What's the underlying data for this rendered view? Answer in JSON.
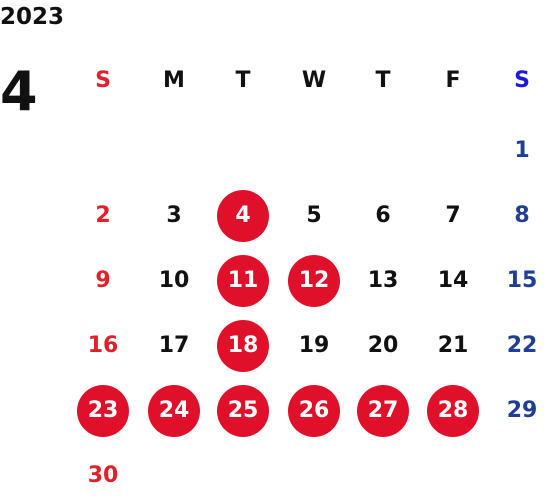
{
  "year": "2023",
  "month": "4",
  "colors": {
    "sunday": "#e0202a",
    "saturday": "#1e3f94",
    "saturday_header": "#1a1ad6",
    "highlight": "#e0102a",
    "text": "#111111"
  },
  "weekday_headers": [
    "S",
    "M",
    "T",
    "W",
    "T",
    "F",
    "S"
  ],
  "weeks": [
    [
      "",
      "",
      "",
      "",
      "",
      "",
      "1"
    ],
    [
      "2",
      "3",
      "4",
      "5",
      "6",
      "7",
      "8"
    ],
    [
      "9",
      "10",
      "11",
      "12",
      "13",
      "14",
      "15"
    ],
    [
      "16",
      "17",
      "18",
      "19",
      "20",
      "21",
      "22"
    ],
    [
      "23",
      "24",
      "25",
      "26",
      "27",
      "28",
      "29"
    ],
    [
      "30",
      "",
      "",
      "",
      "",
      "",
      ""
    ]
  ],
  "highlighted_days": [
    "4",
    "11",
    "12",
    "18",
    "23",
    "24",
    "25",
    "26",
    "27",
    "28"
  ]
}
